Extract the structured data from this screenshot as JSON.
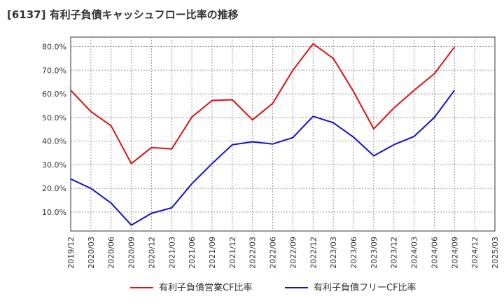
{
  "chart_data": {
    "type": "line",
    "title": "[6137]  有利子負債キャッシュフロー比率の推移",
    "x": [
      "2019/12",
      "2020/03",
      "2020/06",
      "2020/09",
      "2020/12",
      "2021/03",
      "2021/06",
      "2021/09",
      "2021/12",
      "2022/03",
      "2022/06",
      "2022/09",
      "2022/12",
      "2023/03",
      "2023/06",
      "2023/09",
      "2023/12",
      "2024/03",
      "2024/06",
      "2024/09"
    ],
    "x_ticks": [
      "2019/12",
      "2020/03",
      "2020/06",
      "2020/09",
      "2020/12",
      "2021/03",
      "2021/06",
      "2021/09",
      "2021/12",
      "2022/03",
      "2022/06",
      "2022/09",
      "2022/12",
      "2023/03",
      "2023/06",
      "2023/09",
      "2023/12",
      "2024/03",
      "2024/06",
      "2024/09",
      "2024/12",
      "2025/03"
    ],
    "y_ticks": [
      "10.0%",
      "20.0%",
      "30.0%",
      "40.0%",
      "50.0%",
      "60.0%",
      "70.0%",
      "80.0%"
    ],
    "ylim": [
      2,
      84
    ],
    "grid": true,
    "legend": "bottom",
    "series": [
      {
        "name": "有利子負債営業CF比率",
        "color": "#dd1111",
        "values": [
          61.5,
          52.5,
          46.5,
          30.5,
          37.3,
          36.7,
          50.2,
          57.2,
          57.5,
          49.0,
          56.0,
          70.0,
          81.2,
          75.0,
          61.0,
          45.2,
          54.0,
          61.5,
          68.5,
          79.8
        ]
      },
      {
        "name": "有利子負債フリーCF比率",
        "color": "#1111cc",
        "values": [
          24.0,
          20.0,
          13.8,
          4.5,
          9.5,
          11.8,
          22.0,
          30.5,
          38.5,
          39.7,
          38.8,
          41.5,
          50.5,
          47.8,
          41.7,
          33.8,
          38.5,
          42.0,
          50.0,
          61.5
        ]
      }
    ]
  }
}
